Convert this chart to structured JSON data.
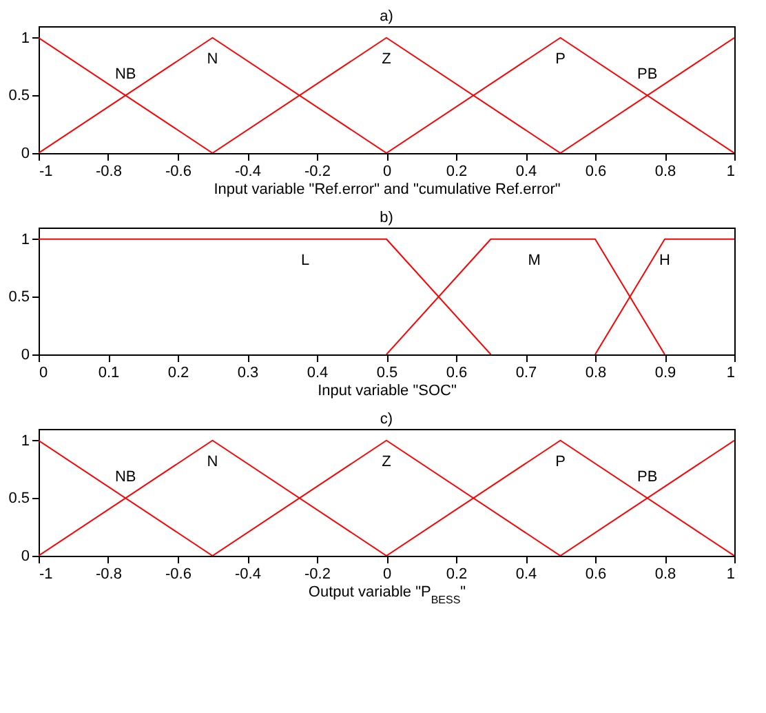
{
  "chart_data": [
    {
      "type": "line",
      "title": "a)",
      "xlabel": "Input variable \"Ref.error\" and \"cumulative Ref.error\"",
      "xlim": [
        -1,
        1
      ],
      "xticks": [
        -1,
        -0.8,
        -0.6,
        -0.4,
        -0.2,
        0,
        0.2,
        0.4,
        0.6,
        0.8,
        1
      ],
      "ylim": [
        0,
        1.1
      ],
      "yticks": [
        0,
        0.5,
        1
      ],
      "grid": false,
      "legend": false,
      "series": [
        {
          "name": "NB",
          "color": "#ff0000",
          "x": [
            -1,
            -0.5
          ],
          "values": [
            1,
            0
          ]
        },
        {
          "name": "N",
          "color": "#ff0000",
          "x": [
            -1,
            -0.5,
            0
          ],
          "values": [
            0,
            1,
            0
          ]
        },
        {
          "name": "Z",
          "color": "#ff0000",
          "x": [
            -0.5,
            0,
            0.5
          ],
          "values": [
            0,
            1,
            0
          ]
        },
        {
          "name": "P",
          "color": "#ff0000",
          "x": [
            0,
            0.5,
            1
          ],
          "values": [
            0,
            1,
            0
          ]
        },
        {
          "name": "PB",
          "color": "#ff0000",
          "x": [
            0.5,
            1
          ],
          "values": [
            0,
            1
          ]
        }
      ]
    },
    {
      "type": "line",
      "title": "b)",
      "xlabel": "Input variable \"SOC\"",
      "xlim": [
        0,
        1
      ],
      "xticks": [
        0,
        0.1,
        0.2,
        0.3,
        0.4,
        0.5,
        0.6,
        0.7,
        0.8,
        0.9,
        1
      ],
      "ylim": [
        0,
        1.1
      ],
      "yticks": [
        0,
        0.5,
        1
      ],
      "grid": false,
      "legend": false,
      "series": [
        {
          "name": "L",
          "color": "#ff0000",
          "x": [
            0,
            0.5,
            0.65
          ],
          "values": [
            1,
            1,
            0
          ]
        },
        {
          "name": "M",
          "color": "#ff0000",
          "x": [
            0.5,
            0.65,
            0.8,
            0.9
          ],
          "values": [
            0,
            1,
            1,
            0
          ]
        },
        {
          "name": "H",
          "color": "#ff0000",
          "x": [
            0.8,
            0.9,
            1
          ],
          "values": [
            0,
            1,
            1
          ]
        }
      ]
    },
    {
      "type": "line",
      "title": "c)",
      "xlabel": "Output variable \"P$_{BESS}$\"",
      "xlim": [
        -1,
        1
      ],
      "xticks": [
        -1,
        -0.8,
        -0.6,
        -0.4,
        -0.2,
        0,
        0.2,
        0.4,
        0.6,
        0.8,
        1
      ],
      "ylim": [
        0,
        1.1
      ],
      "yticks": [
        0,
        0.5,
        1
      ],
      "grid": false,
      "legend": false,
      "series": [
        {
          "name": "NB",
          "color": "#ff0000",
          "x": [
            -1,
            -0.5
          ],
          "values": [
            1,
            0
          ]
        },
        {
          "name": "N",
          "color": "#ff0000",
          "x": [
            -1,
            -0.5,
            0
          ],
          "values": [
            0,
            1,
            0
          ]
        },
        {
          "name": "Z",
          "color": "#ff0000",
          "x": [
            -0.5,
            0,
            0.5
          ],
          "values": [
            0,
            1,
            0
          ]
        },
        {
          "name": "P",
          "color": "#ff0000",
          "x": [
            0,
            0.5,
            1
          ],
          "values": [
            0,
            1,
            0
          ]
        },
        {
          "name": "PB",
          "color": "#ff0000",
          "x": [
            0.5,
            1
          ],
          "values": [
            0,
            1
          ]
        }
      ]
    }
  ]
}
